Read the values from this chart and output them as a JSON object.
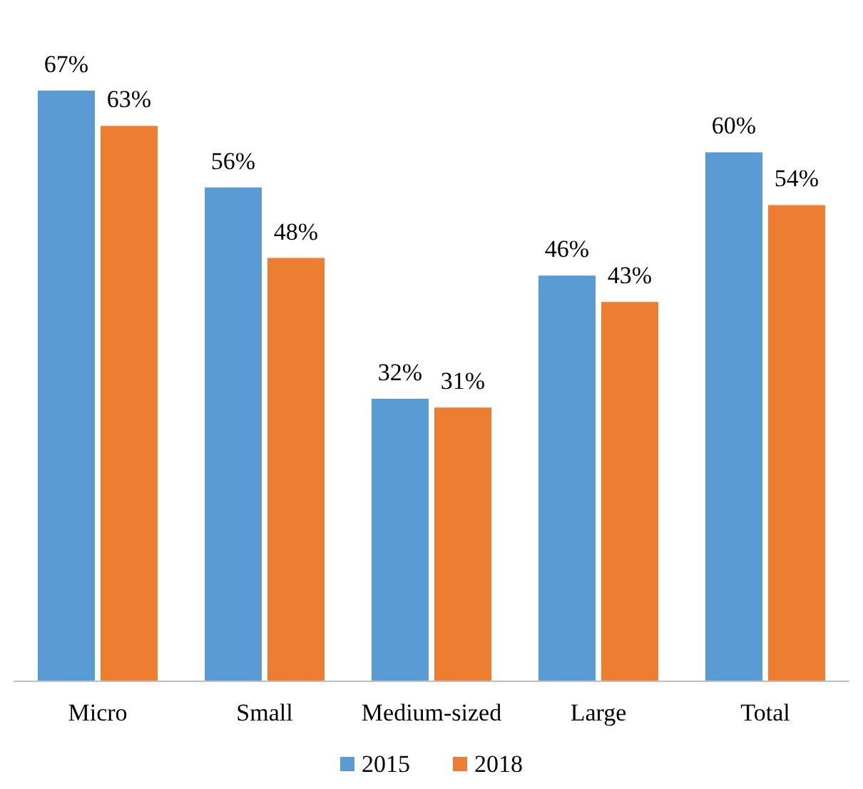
{
  "chart_data": {
    "type": "bar",
    "categories": [
      "Micro",
      "Small",
      "Medium-sized",
      "Large",
      "Total"
    ],
    "series": [
      {
        "name": "2015",
        "color": "#5b9bd5",
        "values": [
          67,
          56,
          32,
          46,
          60
        ],
        "value_labels": [
          "67%",
          "56%",
          "32%",
          "46%",
          "60%"
        ]
      },
      {
        "name": "2018",
        "color": "#ed7d31",
        "values": [
          63,
          48,
          31,
          43,
          54
        ],
        "value_labels": [
          "63%",
          "48%",
          "31%",
          "43%",
          "54%"
        ]
      }
    ],
    "legend": "bottom",
    "grid": false
  }
}
